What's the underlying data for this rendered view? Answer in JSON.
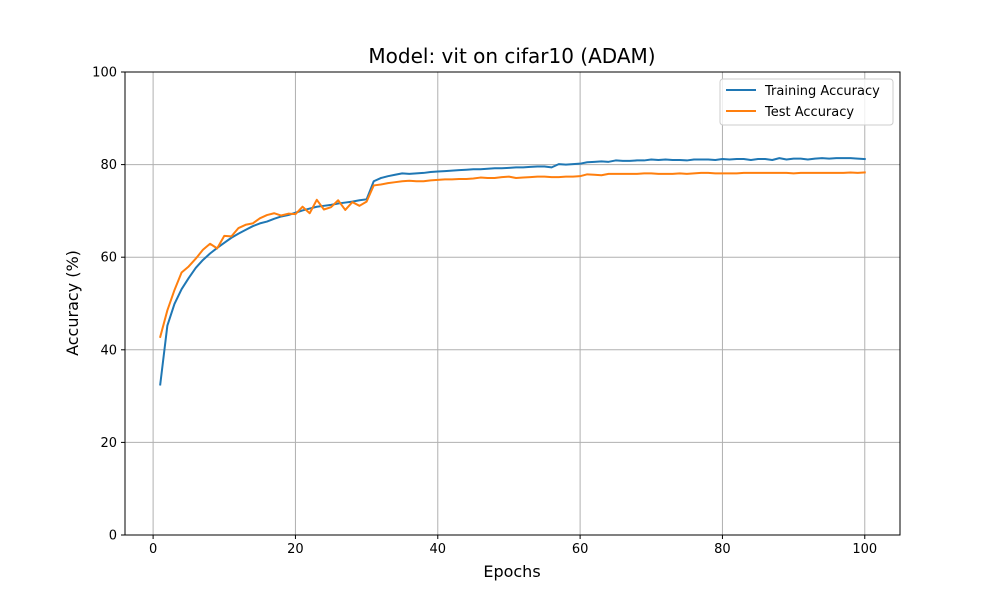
{
  "chart_data": {
    "type": "line",
    "title": "Model: vit on cifar10 (ADAM)",
    "xlabel": "Epochs",
    "ylabel": "Accuracy (%)",
    "xlim": [
      -3.95,
      104.95
    ],
    "ylim": [
      0,
      100
    ],
    "xticks": [
      0,
      20,
      40,
      60,
      80,
      100
    ],
    "yticks": [
      0,
      20,
      40,
      60,
      80,
      100
    ],
    "grid": true,
    "legend_position": "top-right",
    "series": [
      {
        "name": "Training Accuracy",
        "color": "#1f77b4",
        "x": [
          1,
          2,
          3,
          4,
          5,
          6,
          7,
          8,
          9,
          10,
          11,
          12,
          13,
          14,
          15,
          16,
          17,
          18,
          19,
          20,
          21,
          22,
          23,
          24,
          25,
          26,
          27,
          28,
          29,
          30,
          31,
          32,
          33,
          34,
          35,
          36,
          37,
          38,
          39,
          40,
          41,
          42,
          43,
          44,
          45,
          46,
          47,
          48,
          49,
          50,
          51,
          52,
          53,
          54,
          55,
          56,
          57,
          58,
          59,
          60,
          61,
          62,
          63,
          64,
          65,
          66,
          67,
          68,
          69,
          70,
          71,
          72,
          73,
          74,
          75,
          76,
          77,
          78,
          79,
          80,
          81,
          82,
          83,
          84,
          85,
          86,
          87,
          88,
          89,
          90,
          91,
          92,
          93,
          94,
          95,
          96,
          97,
          98,
          99,
          100
        ],
        "values": [
          32.5,
          45.2,
          49.9,
          53.1,
          55.5,
          57.7,
          59.4,
          60.8,
          62.0,
          63.1,
          64.2,
          65.1,
          65.9,
          66.7,
          67.3,
          67.7,
          68.3,
          68.8,
          69.1,
          69.6,
          70.1,
          70.5,
          70.9,
          71.1,
          71.3,
          71.6,
          71.8,
          72.0,
          72.3,
          72.5,
          76.4,
          77.1,
          77.5,
          77.8,
          78.1,
          78.0,
          78.1,
          78.2,
          78.4,
          78.5,
          78.6,
          78.7,
          78.8,
          78.9,
          79.0,
          79.0,
          79.1,
          79.2,
          79.2,
          79.3,
          79.4,
          79.4,
          79.5,
          79.6,
          79.6,
          79.4,
          80.1,
          80.0,
          80.1,
          80.2,
          80.5,
          80.6,
          80.7,
          80.6,
          80.9,
          80.8,
          80.8,
          80.9,
          80.9,
          81.1,
          81.0,
          81.1,
          81.0,
          81.0,
          80.9,
          81.1,
          81.1,
          81.1,
          81.0,
          81.2,
          81.1,
          81.2,
          81.2,
          81.0,
          81.2,
          81.2,
          81.0,
          81.4,
          81.1,
          81.3,
          81.3,
          81.1,
          81.3,
          81.4,
          81.3,
          81.4,
          81.4,
          81.4,
          81.3,
          81.2
        ]
      },
      {
        "name": "Test Accuracy",
        "color": "#ff7f0e",
        "x": [
          1,
          2,
          3,
          4,
          5,
          6,
          7,
          8,
          9,
          10,
          11,
          12,
          13,
          14,
          15,
          16,
          17,
          18,
          19,
          20,
          21,
          22,
          23,
          24,
          25,
          26,
          27,
          28,
          29,
          30,
          31,
          32,
          33,
          34,
          35,
          36,
          37,
          38,
          39,
          40,
          41,
          42,
          43,
          44,
          45,
          46,
          47,
          48,
          49,
          50,
          51,
          52,
          53,
          54,
          55,
          56,
          57,
          58,
          59,
          60,
          61,
          62,
          63,
          64,
          65,
          66,
          67,
          68,
          69,
          70,
          71,
          72,
          73,
          74,
          75,
          76,
          77,
          78,
          79,
          80,
          81,
          82,
          83,
          84,
          85,
          86,
          87,
          88,
          89,
          90,
          91,
          92,
          93,
          94,
          95,
          96,
          97,
          98,
          99,
          100
        ],
        "values": [
          42.8,
          48.5,
          52.9,
          56.7,
          58.0,
          59.7,
          61.6,
          62.9,
          61.9,
          64.6,
          64.5,
          66.3,
          67.0,
          67.3,
          68.4,
          69.1,
          69.5,
          69.0,
          69.4,
          69.3,
          70.9,
          69.5,
          72.4,
          70.3,
          70.8,
          72.3,
          70.2,
          71.9,
          71.1,
          72.0,
          75.5,
          75.7,
          76.0,
          76.2,
          76.4,
          76.5,
          76.4,
          76.4,
          76.6,
          76.7,
          76.8,
          76.8,
          76.9,
          76.9,
          77.0,
          77.2,
          77.1,
          77.1,
          77.3,
          77.4,
          77.1,
          77.2,
          77.3,
          77.4,
          77.4,
          77.3,
          77.3,
          77.4,
          77.4,
          77.5,
          77.9,
          77.8,
          77.7,
          78.0,
          78.0,
          78.0,
          78.0,
          78.0,
          78.1,
          78.1,
          78.0,
          78.0,
          78.0,
          78.1,
          78.0,
          78.1,
          78.2,
          78.2,
          78.1,
          78.1,
          78.1,
          78.1,
          78.2,
          78.2,
          78.2,
          78.2,
          78.2,
          78.2,
          78.2,
          78.1,
          78.2,
          78.2,
          78.2,
          78.2,
          78.2,
          78.2,
          78.2,
          78.3,
          78.2,
          78.3
        ]
      }
    ]
  }
}
